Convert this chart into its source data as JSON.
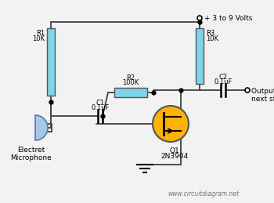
{
  "bg_color": "#f2f2f2",
  "wire_color": "#404040",
  "resistor_color": "#7FD4E8",
  "transistor_color": "#FFB300",
  "mic_color": "#A8C8E8",
  "watermark": "www.circuitdiagram.net",
  "components": {
    "R1": {
      "label": "R1",
      "value": "10K"
    },
    "R2": {
      "label": "R2",
      "value": "100K"
    },
    "R3": {
      "label": "R3",
      "value": "10K"
    },
    "C1": {
      "label": "C1",
      "value": "0.1uF"
    },
    "C2": {
      "label": "C2",
      "value": "0.1uF"
    },
    "Q1": {
      "label": "Q1",
      "value": "2N3904"
    },
    "mic": {
      "label": "Electret\nMicrophone"
    },
    "vcc": {
      "label": "+ 3 to 9 Volts"
    },
    "out": {
      "label": "Output to\nnext stage."
    }
  }
}
